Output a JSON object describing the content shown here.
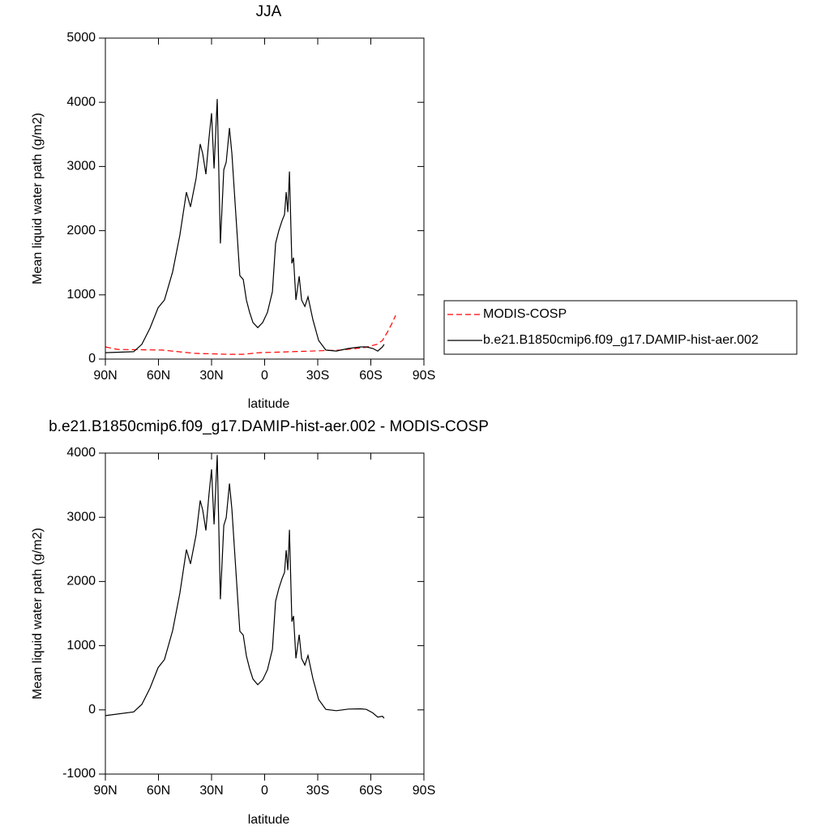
{
  "chart_data": [
    {
      "type": "line",
      "title": "JJA",
      "xlabel": "latitude",
      "ylabel": "Mean liquid water path (g/m2)",
      "xlim": [
        90,
        -90
      ],
      "ylim": [
        0,
        5000
      ],
      "xticks": [
        {
          "value": 90,
          "label": "90N"
        },
        {
          "value": 60,
          "label": "60N"
        },
        {
          "value": 30,
          "label": "30N"
        },
        0,
        {
          "value": -30,
          "label": "30S"
        },
        {
          "value": -60,
          "label": "60S"
        },
        {
          "value": -90,
          "label": "90S"
        }
      ],
      "yticks": [
        0,
        1000,
        2000,
        3000,
        4000,
        5000
      ],
      "legend": "right",
      "series": [
        {
          "name": "MODIS-COSP",
          "color": "#ff0000",
          "line_style": "dashed",
          "x": [
            90,
            83.1,
            57.9,
            39.6,
            21.3,
            12.1,
            3,
            -15.4,
            -43,
            -56.7,
            -63.5,
            -66.6,
            -69.4,
            -71.7,
            -74
          ],
          "values": [
            190,
            150,
            140,
            90,
            75,
            75,
            100,
            115,
            140,
            180,
            230,
            290,
            420,
            540,
            680
          ]
        },
        {
          "name": "b.e21.B1850cmip6.f09_g17.DAMIP-hist-aer.002",
          "color": "#000000",
          "line_style": "solid",
          "x": [
            90,
            74,
            69.4,
            64.8,
            60.2,
            56.6,
            52,
            47.9,
            44.2,
            41.9,
            38.7,
            36.4,
            35,
            33.2,
            31.4,
            30,
            28.6,
            26.8,
            25,
            23.1,
            21.7,
            19.9,
            18.5,
            16.7,
            14,
            12.1,
            10.3,
            8.5,
            6.6,
            3.9,
            1.1,
            -1.6,
            -4.4,
            -6.2,
            -8,
            -9.9,
            -11.2,
            -12.2,
            -13.1,
            -14,
            -15.4,
            -16.3,
            -17.7,
            -19.5,
            -20.9,
            -22.7,
            -24.5,
            -27.3,
            -30.5,
            -34.6,
            -40.5,
            -47.4,
            -54.3,
            -57.5,
            -61.1,
            -63.9,
            -66.6,
            -67.5
          ],
          "values": [
            100,
            115,
            230,
            480,
            800,
            920,
            1360,
            1930,
            2600,
            2370,
            2820,
            3350,
            3200,
            2880,
            3450,
            3830,
            2970,
            4050,
            1800,
            2950,
            3070,
            3600,
            3200,
            2440,
            1300,
            1240,
            920,
            730,
            570,
            490,
            570,
            730,
            1050,
            1800,
            2000,
            2160,
            2250,
            2600,
            2290,
            2920,
            1490,
            1580,
            920,
            1290,
            920,
            820,
            970,
            610,
            290,
            140,
            125,
            165,
            190,
            190,
            165,
            125,
            190,
            230
          ]
        }
      ]
    },
    {
      "type": "line",
      "title": "b.e21.B1850cmip6.f09_g17.DAMIP-hist-aer.002 - MODIS-COSP",
      "xlabel": "latitude",
      "ylabel": "Mean liquid water path (g/m2)",
      "xlim": [
        90,
        -90
      ],
      "ylim": [
        -1000,
        4000
      ],
      "xticks": [
        {
          "value": 90,
          "label": "90N"
        },
        {
          "value": 60,
          "label": "60N"
        },
        {
          "value": 30,
          "label": "30N"
        },
        0,
        {
          "value": -30,
          "label": "30S"
        },
        {
          "value": -60,
          "label": "60S"
        },
        {
          "value": -90,
          "label": "90S"
        }
      ],
      "yticks": [
        -1000,
        0,
        1000,
        2000,
        3000,
        4000
      ],
      "series": [
        {
          "color": "#000000",
          "line_style": "solid",
          "x": [
            90,
            74,
            69.4,
            64.8,
            60.2,
            56.6,
            52,
            47.9,
            44.2,
            41.9,
            38.7,
            36.4,
            35,
            33.2,
            31.4,
            30,
            28.6,
            26.8,
            25,
            23.1,
            21.7,
            19.9,
            18.5,
            16.7,
            14,
            12.1,
            10.3,
            8.5,
            6.6,
            3.9,
            1.1,
            -1.6,
            -4.4,
            -6.2,
            -8,
            -9.9,
            -11.2,
            -12.2,
            -13.1,
            -14,
            -15.4,
            -16.3,
            -17.7,
            -19.5,
            -20.9,
            -22.7,
            -24.5,
            -27.3,
            -30.5,
            -34.6,
            -40.5,
            -47.4,
            -54.3,
            -57.5,
            -61.1,
            -63.9,
            -66.6,
            -67.5
          ],
          "values": [
            -90,
            -31,
            86,
            337,
            659,
            784,
            1236,
            1817,
            2497,
            2274,
            2731,
            3263,
            3114,
            2796,
            3367,
            3748,
            2889,
            3970,
            1722,
            2874,
            2995,
            3525,
            3125,
            2365,
            1225,
            1165,
            840,
            645,
            480,
            392,
            468,
            626,
            944,
            1693,
            1891,
            2050,
            2139,
            2488,
            2177,
            2806,
            1375,
            1464,
            803,
            1171,
            800,
            698,
            847,
            484,
            161,
            8,
            -13,
            12,
            17,
            7,
            -47,
            -112,
            -100,
            -130
          ]
        }
      ]
    }
  ]
}
